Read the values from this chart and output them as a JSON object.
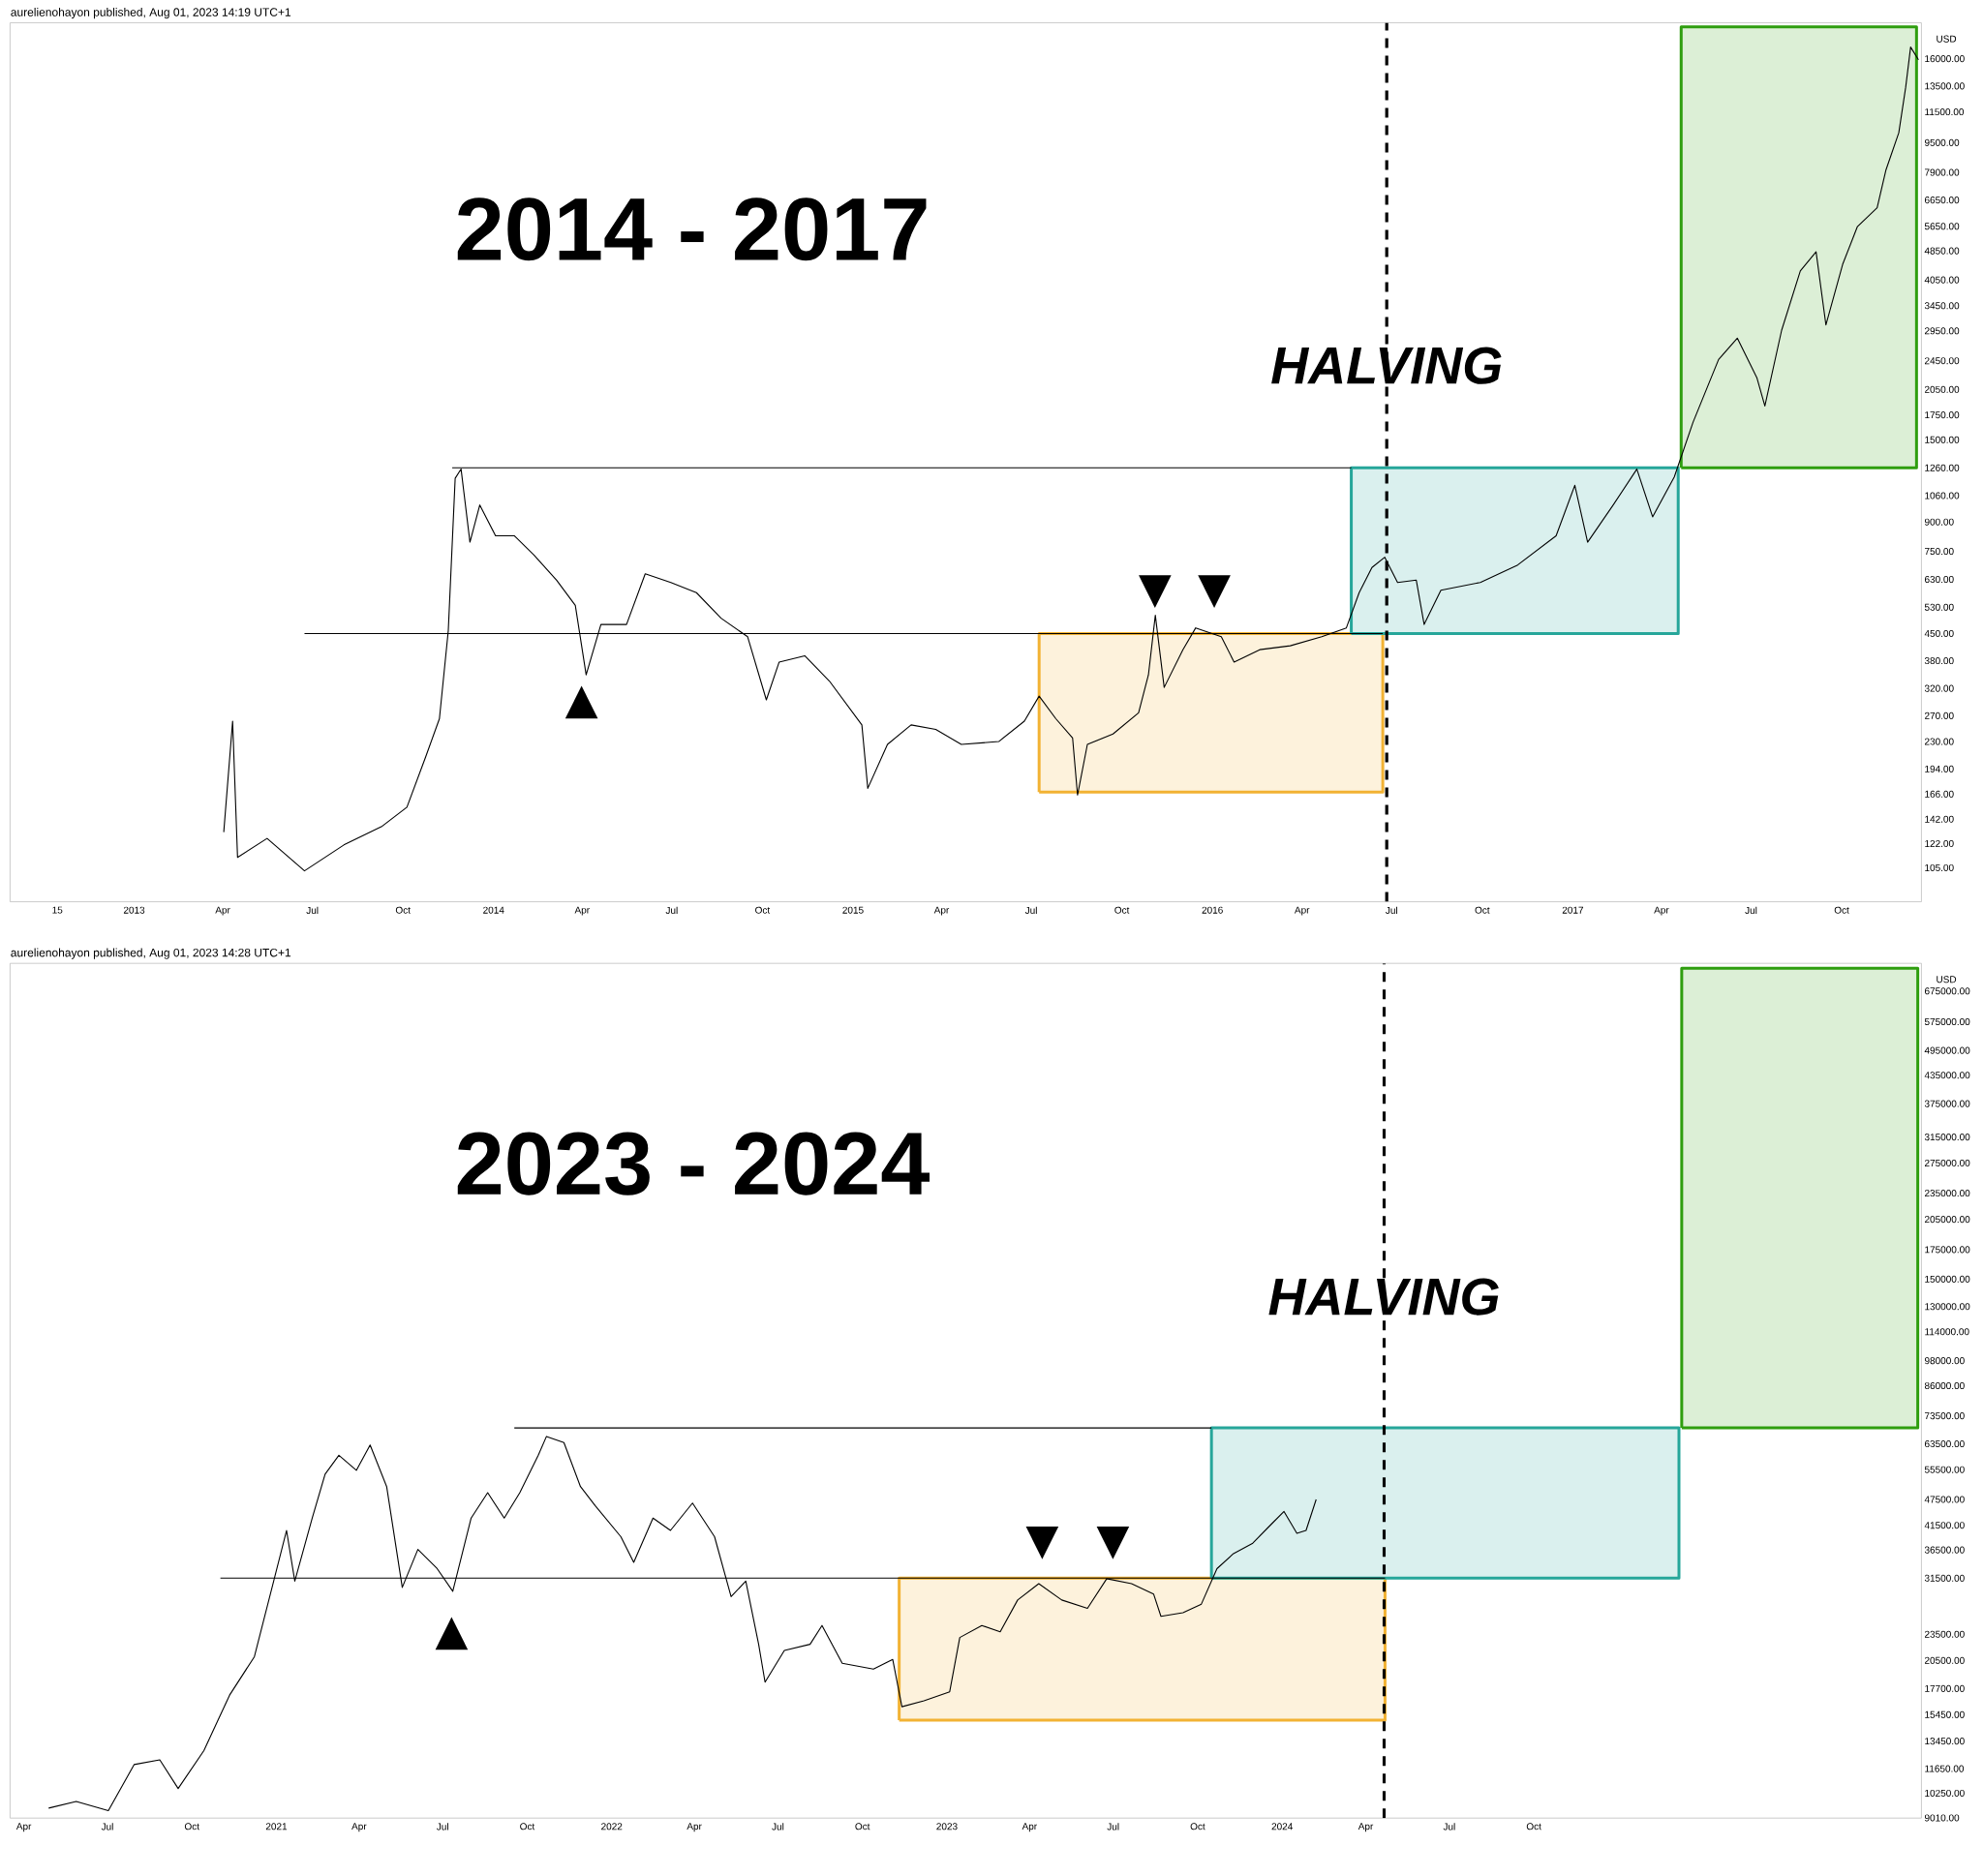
{
  "chart_data": [
    {
      "type": "line",
      "title": "2014 - 2017",
      "subtitle": "aurelienohayon published, Aug 01, 2023 14:19 UTC+1",
      "ylabel": "USD",
      "log": true,
      "xlim": [
        "2012-08-28",
        "2017-12-21"
      ],
      "ylim": [
        85,
        20000
      ],
      "xticks": [
        {
          "value": "2012-10-15",
          "label": "15"
        },
        {
          "value": "2013-01-01",
          "label": "2013"
        },
        {
          "value": "2013-04-01",
          "label": "Apr"
        },
        {
          "value": "2013-07-01",
          "label": "Jul"
        },
        {
          "value": "2013-10-01",
          "label": "Oct"
        },
        {
          "value": "2014-01-01",
          "label": "2014"
        },
        {
          "value": "2014-04-01",
          "label": "Apr"
        },
        {
          "value": "2014-07-01",
          "label": "Jul"
        },
        {
          "value": "2014-10-01",
          "label": "Oct"
        },
        {
          "value": "2015-01-01",
          "label": "2015"
        },
        {
          "value": "2015-04-01",
          "label": "Apr"
        },
        {
          "value": "2015-07-01",
          "label": "Jul"
        },
        {
          "value": "2015-10-01",
          "label": "Oct"
        },
        {
          "value": "2016-01-01",
          "label": "2016"
        },
        {
          "value": "2016-04-01",
          "label": "Apr"
        },
        {
          "value": "2016-07-01",
          "label": "Jul"
        },
        {
          "value": "2016-10-01",
          "label": "Oct"
        },
        {
          "value": "2017-01-01",
          "label": "2017"
        },
        {
          "value": "2017-04-01",
          "label": "Apr"
        },
        {
          "value": "2017-07-01",
          "label": "Jul"
        },
        {
          "value": "2017-10-01",
          "label": "Oct"
        }
      ],
      "yticks": [
        {
          "value": 105,
          "label": "105.00"
        },
        {
          "value": 122,
          "label": "122.00"
        },
        {
          "value": 142,
          "label": "142.00"
        },
        {
          "value": 166,
          "label": "166.00"
        },
        {
          "value": 194,
          "label": "194.00"
        },
        {
          "value": 230,
          "label": "230.00"
        },
        {
          "value": 270,
          "label": "270.00"
        },
        {
          "value": 320,
          "label": "320.00"
        },
        {
          "value": 380,
          "label": "380.00"
        },
        {
          "value": 450,
          "label": "450.00"
        },
        {
          "value": 530,
          "label": "530.00"
        },
        {
          "value": 630,
          "label": "630.00"
        },
        {
          "value": 750,
          "label": "750.00"
        },
        {
          "value": 900,
          "label": "900.00"
        },
        {
          "value": 1060,
          "label": "1060.00"
        },
        {
          "value": 1260,
          "label": "1260.00"
        },
        {
          "value": 1500,
          "label": "1500.00"
        },
        {
          "value": 1750,
          "label": "1750.00"
        },
        {
          "value": 2050,
          "label": "2050.00"
        },
        {
          "value": 2450,
          "label": "2450.00"
        },
        {
          "value": 2950,
          "label": "2950.00"
        },
        {
          "value": 3450,
          "label": "3450.00"
        },
        {
          "value": 4050,
          "label": "4050.00"
        },
        {
          "value": 4850,
          "label": "4850.00"
        },
        {
          "value": 5650,
          "label": "5650.00"
        },
        {
          "value": 6650,
          "label": "6650.00"
        },
        {
          "value": 7900,
          "label": "7900.00"
        },
        {
          "value": 9500,
          "label": "9500.00"
        },
        {
          "value": 11500,
          "label": "11500.00"
        },
        {
          "value": 13500,
          "label": "13500.00"
        },
        {
          "value": 16000,
          "label": "16000.00"
        }
      ],
      "series": [
        {
          "type": "area",
          "color": "#f2b233",
          "x": [
            "2015-07-09",
            "2016-06-22",
            "2016-06-22",
            "2015-07-09",
            "2015-07-09"
          ],
          "values": [
            168,
            168,
            450,
            450,
            168
          ]
        },
        {
          "type": "area",
          "color": "#26a69a",
          "x": [
            "2016-05-21",
            "2017-04-18",
            "2017-04-18",
            "2016-05-21",
            "2016-05-21"
          ],
          "values": [
            450,
            450,
            1260,
            1260,
            450
          ]
        },
        {
          "type": "area",
          "color": "#2f9e0f",
          "x": [
            "2017-04-21",
            "2017-12-16",
            "2017-12-16",
            "2017-04-21",
            "2017-04-21"
          ],
          "values": [
            1260,
            1260,
            19500,
            19500,
            1260
          ]
        },
        {
          "type": "line",
          "color": "#000000",
          "x": [
            "2013-11-20",
            "2016-05-21"
          ],
          "values": [
            1260,
            1260
          ]
        },
        {
          "type": "line",
          "color": "#000000",
          "x": [
            "2013-06-23",
            "2016-06-22"
          ],
          "values": [
            450,
            450
          ]
        },
        {
          "color": "#000000",
          "x": [
            "2013-04-02",
            "2013-04-11",
            "2013-04-16",
            "2013-05-16",
            "2013-06-23",
            "2013-08-02",
            "2013-09-10",
            "2013-10-05",
            "2013-10-24",
            "2013-11-07",
            "2013-11-16",
            "2013-11-23",
            "2013-11-29",
            "2013-12-08",
            "2013-12-18",
            "2014-01-03",
            "2014-01-22",
            "2014-02-11",
            "2014-03-06",
            "2014-03-25",
            "2014-04-05",
            "2014-04-20",
            "2014-05-16",
            "2014-06-04",
            "2014-06-30",
            "2014-07-26",
            "2014-08-20",
            "2014-09-16",
            "2014-10-05",
            "2014-10-18",
            "2014-11-13",
            "2014-12-08",
            "2015-01-10",
            "2015-01-16",
            "2015-02-05",
            "2015-03-01",
            "2015-03-26",
            "2015-04-21",
            "2015-05-29",
            "2015-06-24",
            "2015-07-09",
            "2015-07-26",
            "2015-08-12",
            "2015-08-17",
            "2015-08-27",
            "2015-09-22",
            "2015-10-18",
            "2015-10-28",
            "2015-11-04",
            "2015-11-13",
            "2015-12-02",
            "2015-12-15",
            "2016-01-10",
            "2016-01-23",
            "2016-02-18",
            "2016-03-20",
            "2016-04-21",
            "2016-05-16",
            "2016-05-29",
            "2016-06-11",
            "2016-06-24",
            "2016-07-07",
            "2016-07-26",
            "2016-08-03",
            "2016-08-20",
            "2016-09-29",
            "2016-11-06",
            "2016-12-15",
            "2017-01-03",
            "2017-01-16",
            "2017-02-11",
            "2017-03-07",
            "2017-03-23",
            "2017-04-14",
            "2017-05-03",
            "2017-05-29",
            "2017-06-17",
            "2017-07-07",
            "2017-07-15",
            "2017-08-01",
            "2017-08-20",
            "2017-09-05",
            "2017-09-15",
            "2017-10-02",
            "2017-10-17",
            "2017-11-06",
            "2017-11-15",
            "2017-11-28",
            "2017-12-05",
            "2017-12-10",
            "2017-12-18"
          ],
          "values": [
            131,
            261,
            112,
            126,
            103,
            121,
            136,
            153,
            209,
            265,
            458,
            1180,
            1250,
            794,
            1000,
            826,
            826,
            733,
            627,
            536,
            348,
            476,
            476,
            652,
            618,
            580,
            495,
            441,
            298,
            377,
            392,
            335,
            255,
            172,
            226,
            255,
            248,
            226,
            230,
            261,
            305,
            265,
            235,
            165,
            226,
            241,
            275,
            348,
            504,
            322,
            407,
            466,
            441,
            377,
            407,
            417,
            441,
            466,
            580,
            678,
            723,
            618,
            627,
            476,
            589,
            618,
            689,
            826,
            1130,
            794,
            1000,
            1250,
            929,
            1190,
            1670,
            2470,
            2820,
            2200,
            1850,
            2960,
            4280,
            4820,
            3060,
            4460,
            5640,
            6340,
            8020,
            10100,
            13400,
            17200,
            15900
          ]
        }
      ],
      "ref_lines": [
        {
          "axis": "x",
          "value": "2016-06-26",
          "label": "HALVING",
          "line_style": "dashed",
          "color": "#000000"
        }
      ],
      "annotations": [
        "▲",
        "▼",
        "▼"
      ]
    },
    {
      "type": "line",
      "title": "2023 - 2024",
      "subtitle": "aurelienohayon published, Aug 01, 2023 14:28 UTC+1",
      "ylabel": "USD",
      "log": true,
      "xlim": [
        "2020-03-17",
        "2025-11-27"
      ],
      "ylim": [
        9000,
        780000
      ],
      "xticks": [
        {
          "value": "2020-04-01",
          "label": "Apr"
        },
        {
          "value": "2020-07-01",
          "label": "Jul"
        },
        {
          "value": "2020-10-01",
          "label": "Oct"
        },
        {
          "value": "2021-01-01",
          "label": "2021"
        },
        {
          "value": "2021-04-01",
          "label": "Apr"
        },
        {
          "value": "2021-07-01",
          "label": "Jul"
        },
        {
          "value": "2021-10-01",
          "label": "Oct"
        },
        {
          "value": "2022-01-01",
          "label": "2022"
        },
        {
          "value": "2022-04-01",
          "label": "Apr"
        },
        {
          "value": "2022-07-01",
          "label": "Jul"
        },
        {
          "value": "2022-10-01",
          "label": "Oct"
        },
        {
          "value": "2023-01-01",
          "label": "2023"
        },
        {
          "value": "2023-04-01",
          "label": "Apr"
        },
        {
          "value": "2023-07-01",
          "label": "Jul"
        },
        {
          "value": "2023-10-01",
          "label": "Oct"
        },
        {
          "value": "2024-01-01",
          "label": "2024"
        },
        {
          "value": "2024-04-01",
          "label": "Apr"
        },
        {
          "value": "2024-07-01",
          "label": "Jul"
        },
        {
          "value": "2024-10-01",
          "label": "Oct"
        }
      ],
      "yticks": [
        {
          "value": 9010,
          "label": "9010.00"
        },
        {
          "value": 10250,
          "label": "10250.00"
        },
        {
          "value": 11650,
          "label": "11650.00"
        },
        {
          "value": 13450,
          "label": "13450.00"
        },
        {
          "value": 15450,
          "label": "15450.00"
        },
        {
          "value": 17700,
          "label": "17700.00"
        },
        {
          "value": 20500,
          "label": "20500.00"
        },
        {
          "value": 23500,
          "label": "23500.00"
        },
        {
          "value": 31500,
          "label": "31500.00"
        },
        {
          "value": 36500,
          "label": "36500.00"
        },
        {
          "value": 41500,
          "label": "41500.00"
        },
        {
          "value": 47500,
          "label": "47500.00"
        },
        {
          "value": 55500,
          "label": "55500.00"
        },
        {
          "value": 63500,
          "label": "63500.00"
        },
        {
          "value": 73500,
          "label": "73500.00"
        },
        {
          "value": 86000,
          "label": "86000.00"
        },
        {
          "value": 98000,
          "label": "98000.00"
        },
        {
          "value": 114000,
          "label": "114000.00"
        },
        {
          "value": 130000,
          "label": "130000.00"
        },
        {
          "value": 150000,
          "label": "150000.00"
        },
        {
          "value": 175000,
          "label": "175000.00"
        },
        {
          "value": 205000,
          "label": "205000.00"
        },
        {
          "value": 235000,
          "label": "235000.00"
        },
        {
          "value": 275000,
          "label": "275000.00"
        },
        {
          "value": 315000,
          "label": "315000.00"
        },
        {
          "value": 375000,
          "label": "375000.00"
        },
        {
          "value": 435000,
          "label": "435000.00"
        },
        {
          "value": 495000,
          "label": "495000.00"
        },
        {
          "value": 575000,
          "label": "575000.00"
        },
        {
          "value": 675000,
          "label": "675000.00"
        }
      ],
      "series": [
        {
          "type": "area",
          "color": "#f2b233",
          "x": [
            "2022-11-10",
            "2024-04-22",
            "2024-04-22",
            "2022-11-10",
            "2022-11-10"
          ],
          "values": [
            15000,
            15000,
            31500,
            31500,
            15000
          ]
        },
        {
          "type": "area",
          "color": "#26a69a",
          "x": [
            "2023-10-16",
            "2025-03-08",
            "2025-03-08",
            "2023-10-16",
            "2023-10-16"
          ],
          "values": [
            31500,
            31500,
            69000,
            69000,
            31500
          ]
        },
        {
          "type": "area",
          "color": "#2f9e0f",
          "x": [
            "2025-03-11",
            "2025-11-23",
            "2025-11-23",
            "2025-03-11",
            "2025-03-11"
          ],
          "values": [
            69000,
            69000,
            760000,
            760000,
            69000
          ]
        },
        {
          "type": "line",
          "color": "#000000",
          "x": [
            "2021-09-17",
            "2023-10-16"
          ],
          "values": [
            69000,
            69000
          ]
        },
        {
          "type": "line",
          "color": "#000000",
          "x": [
            "2020-11-01",
            "2024-04-22"
          ],
          "values": [
            31500,
            31500
          ]
        },
        {
          "color": "#000000",
          "x": [
            "2020-04-28",
            "2020-05-28",
            "2020-07-02",
            "2020-07-30",
            "2020-08-27",
            "2020-09-16",
            "2020-10-14",
            "2020-11-11",
            "2020-12-08",
            "2020-12-29",
            "2021-01-12",
            "2021-01-21",
            "2021-02-09",
            "2021-02-23",
            "2021-03-10",
            "2021-03-29",
            "2021-04-13",
            "2021-05-01",
            "2021-05-18",
            "2021-06-04",
            "2021-06-25",
            "2021-07-12",
            "2021-08-01",
            "2021-08-19",
            "2021-09-06",
            "2021-09-23",
            "2021-10-13",
            "2021-10-22",
            "2021-11-10",
            "2021-11-28",
            "2021-12-14",
            "2022-01-11",
            "2022-01-25",
            "2022-02-15",
            "2022-03-06",
            "2022-03-30",
            "2022-04-23",
            "2022-05-11",
            "2022-05-27",
            "2022-06-10",
            "2022-06-17",
            "2022-07-08",
            "2022-08-05",
            "2022-08-18",
            "2022-09-09",
            "2022-10-13",
            "2022-11-03",
            "2022-11-13",
            "2022-12-07",
            "2023-01-04",
            "2023-01-15",
            "2023-02-08",
            "2023-02-28",
            "2023-03-19",
            "2023-04-11",
            "2023-05-06",
            "2023-06-03",
            "2023-06-24",
            "2023-07-21",
            "2023-08-14",
            "2023-08-22",
            "2023-09-15",
            "2023-10-05",
            "2023-10-22",
            "2023-11-09",
            "2023-11-30",
            "2023-12-20",
            "2024-01-03",
            "2024-01-17",
            "2024-01-27",
            "2024-02-07"
          ],
          "values": [
            9480,
            9820,
            9360,
            11900,
            12200,
            10500,
            12800,
            17100,
            20900,
            31000,
            40400,
            31000,
            43100,
            54200,
            59800,
            55300,
            63100,
            50800,
            30000,
            36600,
            33100,
            29400,
            43100,
            49200,
            43100,
            49200,
            59800,
            66000,
            63900,
            50800,
            46000,
            39100,
            34200,
            43100,
            40400,
            46600,
            39100,
            28600,
            31000,
            22300,
            18300,
            21600,
            22300,
            24600,
            20200,
            19600,
            20600,
            16100,
            16600,
            17400,
            23100,
            24600,
            23800,
            28100,
            30600,
            28100,
            26900,
            31400,
            30600,
            29000,
            25800,
            26300,
            27500,
            33100,
            35800,
            37800,
            41700,
            44600,
            39800,
            40400,
            47500
          ]
        }
      ],
      "ref_lines": [
        {
          "axis": "x",
          "value": "2024-04-21",
          "label": "HALVING",
          "line_style": "dashed",
          "color": "#000000"
        }
      ],
      "annotations": [
        "▲",
        "▼",
        "▼"
      ]
    }
  ]
}
